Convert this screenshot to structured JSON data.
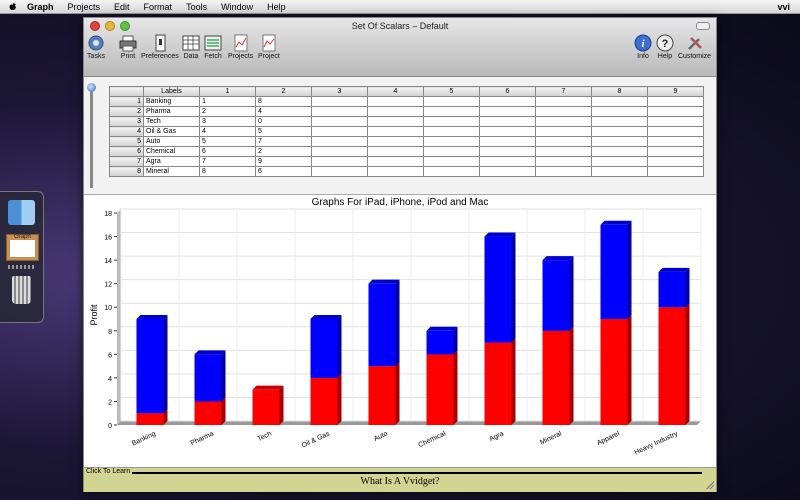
{
  "menubar": {
    "items": [
      "Graph",
      "Projects",
      "Edit",
      "Format",
      "Tools",
      "Window",
      "Help"
    ],
    "right_label": "vvi"
  },
  "window": {
    "title": "Set Of Scalars – Default"
  },
  "toolbar": {
    "tasks": "Tasks",
    "print": "Print",
    "preferences": "Preferences",
    "data": "Data",
    "fetch": "Fetch",
    "projects": "Projects",
    "project": "Project",
    "info": "Info",
    "help": "Help",
    "customize": "Customize"
  },
  "sheet": {
    "labels_header": "Labels",
    "columns": [
      "1",
      "2",
      "3",
      "4",
      "5",
      "6",
      "7",
      "8",
      "9"
    ],
    "rows": [
      {
        "n": "1",
        "label": "Banking",
        "c1": "1",
        "c2": "8"
      },
      {
        "n": "2",
        "label": "Pharma",
        "c1": "2",
        "c2": "4"
      },
      {
        "n": "3",
        "label": "Tech",
        "c1": "3",
        "c2": "0"
      },
      {
        "n": "4",
        "label": "Oil & Gas",
        "c1": "4",
        "c2": "5"
      },
      {
        "n": "5",
        "label": "Auto",
        "c1": "5",
        "c2": "7"
      },
      {
        "n": "6",
        "label": "Chemical",
        "c1": "6",
        "c2": "2"
      },
      {
        "n": "7",
        "label": "Agra",
        "c1": "7",
        "c2": "9"
      },
      {
        "n": "8",
        "label": "Mineral",
        "c1": "8",
        "c2": "6"
      }
    ],
    "field_a": "1",
    "field_b": "1"
  },
  "chart_data": {
    "type": "bar",
    "stacked": true,
    "title": "Graphs For iPad, iPhone, iPod and Mac",
    "xlabel": "",
    "ylabel": "Profit",
    "ylim": [
      0,
      18
    ],
    "yticks": [
      0,
      2,
      4,
      6,
      8,
      10,
      12,
      14,
      16,
      18
    ],
    "categories": [
      "Banking",
      "Pharma",
      "Tech",
      "Oil & Gas",
      "Auto",
      "Chemical",
      "Agra",
      "Mineral",
      "Apparel",
      "Heavy Industry"
    ],
    "series": [
      {
        "values": [
          1,
          2,
          3,
          4,
          5,
          6,
          7,
          8,
          9,
          10
        ],
        "color": "#ff0000"
      },
      {
        "values": [
          8,
          4,
          0,
          5,
          7,
          2,
          9,
          6,
          8,
          3
        ],
        "color": "#0000ff"
      }
    ],
    "grid": true
  },
  "bottom": {
    "learn": "Click To Learn",
    "headline": "What Is A Vvidget?"
  }
}
